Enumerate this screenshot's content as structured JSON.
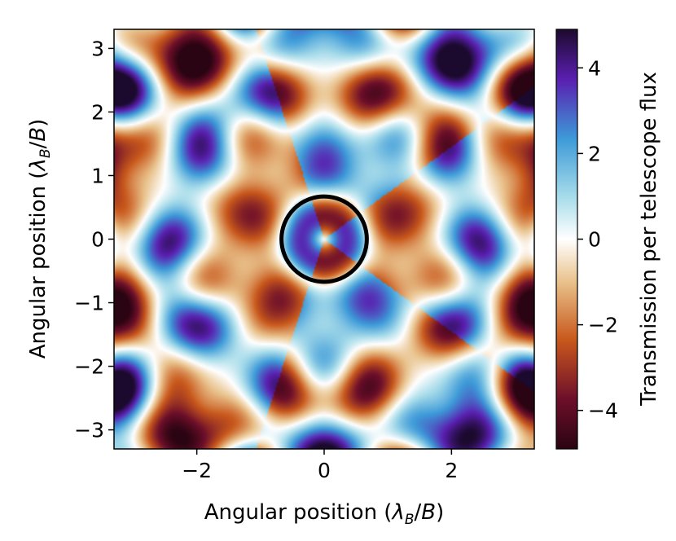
{
  "chart_data": {
    "type": "heatmap",
    "xlabel": "Angular position",
    "ylabel": "Angular position",
    "axis_unit_num": "λ",
    "axis_unit_sub": "B",
    "axis_unit_den": "B",
    "xlim": [
      -3.3,
      3.3
    ],
    "ylim": [
      -3.3,
      3.3
    ],
    "xticks": [
      -2,
      0,
      2
    ],
    "yticks": [
      -3,
      -2,
      -1,
      0,
      1,
      2,
      3
    ],
    "colorbar": {
      "label": "Transmission per telescope flux",
      "range": [
        -4.9,
        4.9
      ],
      "ticks": [
        -4,
        -2,
        0,
        2,
        4
      ],
      "colors": {
        "negative_peak": "#2a0412",
        "negative_mid": "#c8581c",
        "zero": "#ffffff",
        "positive_mid": "#3d9ad8",
        "positive_peak": "#1c0a2e"
      }
    },
    "grid": false,
    "inner_circle": {
      "center": [
        0,
        0
      ],
      "radius": 0.67,
      "color": "#000000"
    },
    "map": {
      "symmetry": 5,
      "modes": [
        {
          "weight": 4.0,
          "wavenumber": 3.0,
          "phase": 0.0
        },
        {
          "weight": 1.6,
          "wavenumber": 5.2,
          "phase": 0.6
        }
      ]
    }
  }
}
